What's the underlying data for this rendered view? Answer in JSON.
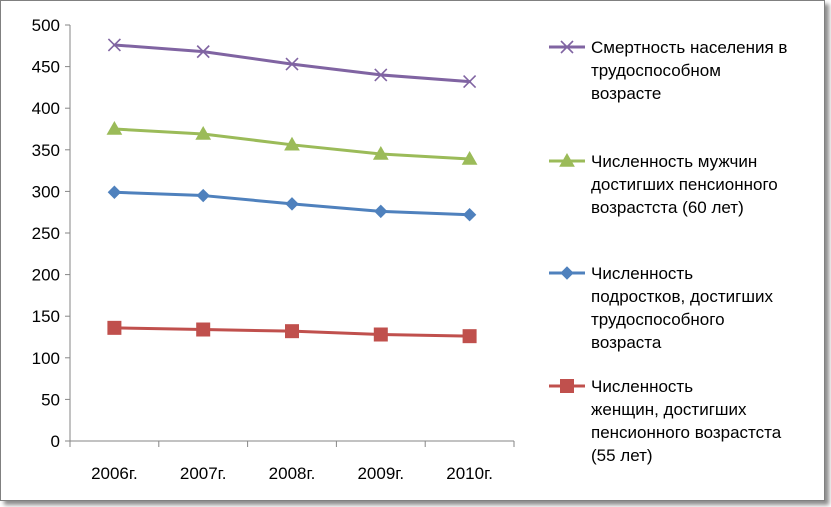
{
  "chart_data": {
    "type": "line",
    "categories": [
      "2006г.",
      "2007г.",
      "2008г.",
      "2009г.",
      "2010г."
    ],
    "ylim": [
      0,
      500
    ],
    "yticks": [
      "0",
      "50",
      "100",
      "150",
      "200",
      "250",
      "300",
      "350",
      "400",
      "450",
      "500"
    ],
    "grid": false,
    "legend_position": "right",
    "series": [
      {
        "name": "Смертность населения в трудоспособном возрасте",
        "legend_lines": [
          "Смертность населения в",
          "трудоспособном",
          "возрасте"
        ],
        "marker": "x",
        "color": "#8064a2",
        "values": [
          476,
          468,
          453,
          440,
          432
        ]
      },
      {
        "name": "Численность мужчин достигших пенсионного возрастста (60 лет)",
        "legend_lines": [
          "Численность мужчин",
          "достигших пенсионного",
          "возрастста (60 лет)"
        ],
        "marker": "triangle",
        "color": "#9bbb59",
        "values": [
          375,
          369,
          356,
          345,
          339
        ]
      },
      {
        "name": "Численность подростков, достигших трудоспособного возраста",
        "legend_lines": [
          "Численность",
          "подростков, достигших",
          "трудоспособного",
          "возраста"
        ],
        "marker": "diamond",
        "color": "#4f81bd",
        "values": [
          299,
          295,
          285,
          276,
          272
        ]
      },
      {
        "name": "Численность женщин, достигших пенсионного возрастста (55 лет)",
        "legend_lines": [
          "Численность",
          "женщин, достигших",
          "пенсионного возрастста",
          "(55 лет)"
        ],
        "marker": "square",
        "color": "#c0504d",
        "values": [
          136,
          134,
          132,
          128,
          126
        ]
      }
    ]
  }
}
